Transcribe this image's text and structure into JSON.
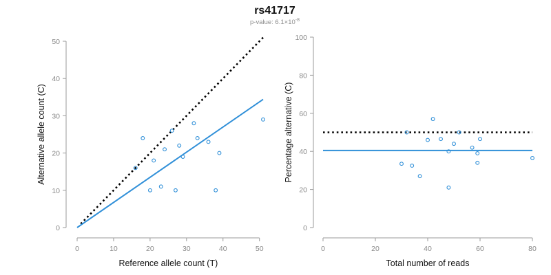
{
  "figure": {
    "title": "rs41717",
    "subtitle_prefix": "p-value: 6.1×10",
    "subtitle_exponent": "-8",
    "colors": {
      "points": "#2f8fd8",
      "fit_line": "#2f8fd8",
      "reference_line": "#000000",
      "axes": "#9a9a9a"
    }
  },
  "chart_data": [
    {
      "type": "scatter",
      "xlabel": "Reference allele count (T)",
      "ylabel": "Alternative allele count (C)",
      "xlim": [
        0,
        51
      ],
      "ylim": [
        0,
        50
      ],
      "xticks": [
        0,
        10,
        20,
        30,
        40,
        50
      ],
      "yticks": [
        0,
        10,
        20,
        30,
        40,
        50
      ],
      "grid": false,
      "points": [
        {
          "x": 16,
          "y": 16
        },
        {
          "x": 18,
          "y": 24
        },
        {
          "x": 20,
          "y": 10
        },
        {
          "x": 21,
          "y": 18
        },
        {
          "x": 23,
          "y": 11
        },
        {
          "x": 24,
          "y": 21
        },
        {
          "x": 26,
          "y": 26
        },
        {
          "x": 27,
          "y": 10
        },
        {
          "x": 28,
          "y": 22
        },
        {
          "x": 29,
          "y": 19
        },
        {
          "x": 32,
          "y": 28
        },
        {
          "x": 33,
          "y": 24
        },
        {
          "x": 36,
          "y": 23
        },
        {
          "x": 38,
          "y": 10
        },
        {
          "x": 39,
          "y": 20
        },
        {
          "x": 51,
          "y": 29
        }
      ],
      "fit_line": {
        "x": [
          0,
          51
        ],
        "y": [
          0,
          34.4
        ]
      },
      "reference_line": {
        "x": [
          1,
          51
        ],
        "y": [
          1,
          51
        ],
        "style": "dotted"
      }
    },
    {
      "type": "scatter",
      "xlabel": "Total number of reads",
      "ylabel": "Percentage alternative (C)",
      "xlim": [
        0,
        80
      ],
      "ylim": [
        0,
        100
      ],
      "xticks": [
        0,
        20,
        40,
        60,
        80
      ],
      "yticks": [
        0,
        20,
        40,
        60,
        80,
        100
      ],
      "grid": false,
      "points": [
        {
          "x": 30,
          "y": 33.5
        },
        {
          "x": 32,
          "y": 50
        },
        {
          "x": 34,
          "y": 32.5
        },
        {
          "x": 37,
          "y": 27
        },
        {
          "x": 40,
          "y": 46
        },
        {
          "x": 42,
          "y": 57
        },
        {
          "x": 45,
          "y": 46.5
        },
        {
          "x": 48,
          "y": 21
        },
        {
          "x": 48,
          "y": 40
        },
        {
          "x": 50,
          "y": 44
        },
        {
          "x": 52,
          "y": 50
        },
        {
          "x": 57,
          "y": 42
        },
        {
          "x": 59,
          "y": 34
        },
        {
          "x": 59,
          "y": 39
        },
        {
          "x": 60,
          "y": 46.5
        },
        {
          "x": 80,
          "y": 36.5
        }
      ],
      "fit_line": {
        "x": [
          0,
          80
        ],
        "y": [
          40.5,
          40.5
        ]
      },
      "reference_line": {
        "x": [
          0,
          80
        ],
        "y": [
          50,
          50
        ],
        "style": "dotted"
      }
    }
  ]
}
